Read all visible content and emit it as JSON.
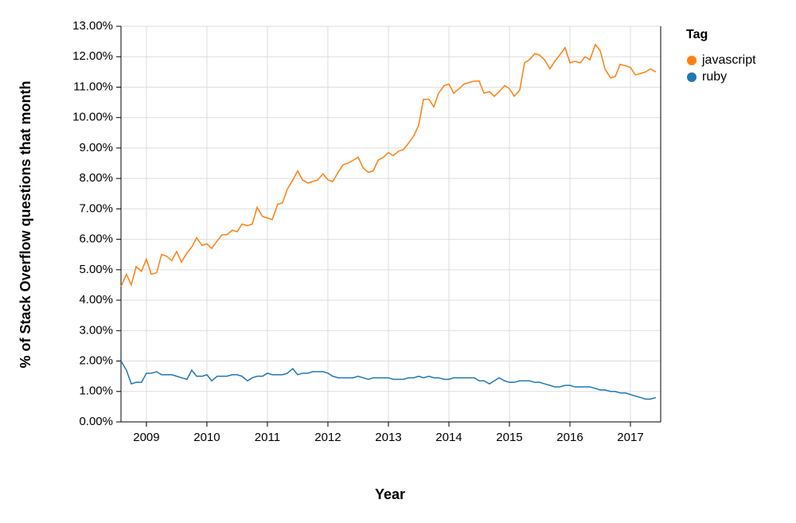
{
  "chart_data": {
    "type": "line",
    "x_label": "Year",
    "y_label": "% of Stack Overflow questions that month",
    "legend_title": "Tag",
    "legend_position": "right",
    "grid": true,
    "x": [
      2008.58,
      2008.67,
      2008.75,
      2008.83,
      2008.92,
      2009.0,
      2009.08,
      2009.17,
      2009.25,
      2009.33,
      2009.42,
      2009.5,
      2009.58,
      2009.67,
      2009.75,
      2009.83,
      2009.92,
      2010.0,
      2010.08,
      2010.17,
      2010.25,
      2010.33,
      2010.42,
      2010.5,
      2010.58,
      2010.67,
      2010.75,
      2010.83,
      2010.92,
      2011.0,
      2011.08,
      2011.17,
      2011.25,
      2011.33,
      2011.42,
      2011.5,
      2011.58,
      2011.67,
      2011.75,
      2011.83,
      2011.92,
      2012.0,
      2012.08,
      2012.17,
      2012.25,
      2012.33,
      2012.42,
      2012.5,
      2012.58,
      2012.67,
      2012.75,
      2012.83,
      2012.92,
      2013.0,
      2013.08,
      2013.17,
      2013.25,
      2013.33,
      2013.42,
      2013.5,
      2013.58,
      2013.67,
      2013.75,
      2013.83,
      2013.92,
      2014.0,
      2014.08,
      2014.17,
      2014.25,
      2014.33,
      2014.42,
      2014.5,
      2014.58,
      2014.67,
      2014.75,
      2014.83,
      2014.92,
      2015.0,
      2015.08,
      2015.17,
      2015.25,
      2015.33,
      2015.42,
      2015.5,
      2015.58,
      2015.67,
      2015.75,
      2015.83,
      2015.92,
      2016.0,
      2016.08,
      2016.17,
      2016.25,
      2016.33,
      2016.42,
      2016.5,
      2016.58,
      2016.67,
      2016.75,
      2016.83,
      2016.92,
      2017.0,
      2017.08,
      2017.17,
      2017.25,
      2017.33,
      2017.42
    ],
    "series": [
      {
        "name": "javascript",
        "color": "#ff7f0e",
        "values": [
          4.45,
          4.85,
          4.5,
          5.1,
          4.95,
          5.35,
          4.85,
          4.9,
          5.5,
          5.45,
          5.3,
          5.6,
          5.25,
          5.55,
          5.75,
          6.05,
          5.8,
          5.85,
          5.7,
          5.95,
          6.15,
          6.15,
          6.3,
          6.25,
          6.5,
          6.45,
          6.5,
          7.05,
          6.75,
          6.7,
          6.65,
          7.15,
          7.2,
          7.65,
          7.95,
          8.25,
          7.95,
          7.85,
          7.9,
          7.95,
          8.15,
          7.95,
          7.9,
          8.2,
          8.45,
          8.5,
          8.6,
          8.7,
          8.35,
          8.2,
          8.25,
          8.6,
          8.7,
          8.85,
          8.75,
          8.9,
          8.95,
          9.15,
          9.4,
          9.75,
          10.6,
          10.6,
          10.35,
          10.8,
          11.05,
          11.1,
          10.8,
          10.95,
          11.1,
          11.15,
          11.2,
          11.2,
          10.8,
          10.85,
          10.7,
          10.85,
          11.05,
          10.95,
          10.7,
          10.9,
          11.8,
          11.9,
          12.1,
          12.05,
          11.9,
          11.6,
          11.85,
          12.05,
          12.3,
          11.8,
          11.85,
          11.8,
          12.0,
          11.9,
          12.4,
          12.2,
          11.6,
          11.3,
          11.35,
          11.75,
          11.7,
          11.65,
          11.4,
          11.45,
          11.5,
          11.6,
          11.5
        ]
      },
      {
        "name": "ruby",
        "color": "#1f77b4",
        "values": [
          2.0,
          1.7,
          1.25,
          1.3,
          1.3,
          1.6,
          1.6,
          1.65,
          1.55,
          1.55,
          1.55,
          1.5,
          1.45,
          1.4,
          1.7,
          1.5,
          1.5,
          1.55,
          1.35,
          1.5,
          1.5,
          1.5,
          1.55,
          1.55,
          1.5,
          1.35,
          1.45,
          1.5,
          1.5,
          1.6,
          1.55,
          1.55,
          1.55,
          1.6,
          1.75,
          1.55,
          1.6,
          1.6,
          1.65,
          1.65,
          1.65,
          1.6,
          1.5,
          1.45,
          1.45,
          1.45,
          1.45,
          1.5,
          1.45,
          1.4,
          1.45,
          1.45,
          1.45,
          1.45,
          1.4,
          1.4,
          1.4,
          1.45,
          1.45,
          1.5,
          1.45,
          1.5,
          1.45,
          1.45,
          1.4,
          1.4,
          1.45,
          1.45,
          1.45,
          1.45,
          1.45,
          1.35,
          1.35,
          1.25,
          1.35,
          1.45,
          1.35,
          1.3,
          1.3,
          1.35,
          1.35,
          1.35,
          1.3,
          1.3,
          1.25,
          1.2,
          1.15,
          1.15,
          1.2,
          1.2,
          1.15,
          1.15,
          1.15,
          1.15,
          1.1,
          1.05,
          1.05,
          1.0,
          1.0,
          0.95,
          0.95,
          0.9,
          0.85,
          0.8,
          0.75,
          0.75,
          0.8
        ]
      }
    ],
    "xlim": [
      2008.58,
      2017.5
    ],
    "xticks": [
      2009,
      2010,
      2011,
      2012,
      2013,
      2014,
      2015,
      2016,
      2017
    ],
    "ylim": [
      0,
      13
    ],
    "yticks": [
      {
        "value": 0,
        "label": "0.00%"
      },
      {
        "value": 1,
        "label": "1.00%"
      },
      {
        "value": 2,
        "label": "2.00%"
      },
      {
        "value": 3,
        "label": "3.00%"
      },
      {
        "value": 4,
        "label": "4.00%"
      },
      {
        "value": 5,
        "label": "5.00%"
      },
      {
        "value": 6,
        "label": "6.00%"
      },
      {
        "value": 7,
        "label": "7.00%"
      },
      {
        "value": 8,
        "label": "8.00%"
      },
      {
        "value": 9,
        "label": "9.00%"
      },
      {
        "value": 10,
        "label": "10.00%"
      },
      {
        "value": 11,
        "label": "11.00%"
      },
      {
        "value": 12,
        "label": "12.00%"
      },
      {
        "value": 13,
        "label": "13.00%"
      }
    ]
  }
}
